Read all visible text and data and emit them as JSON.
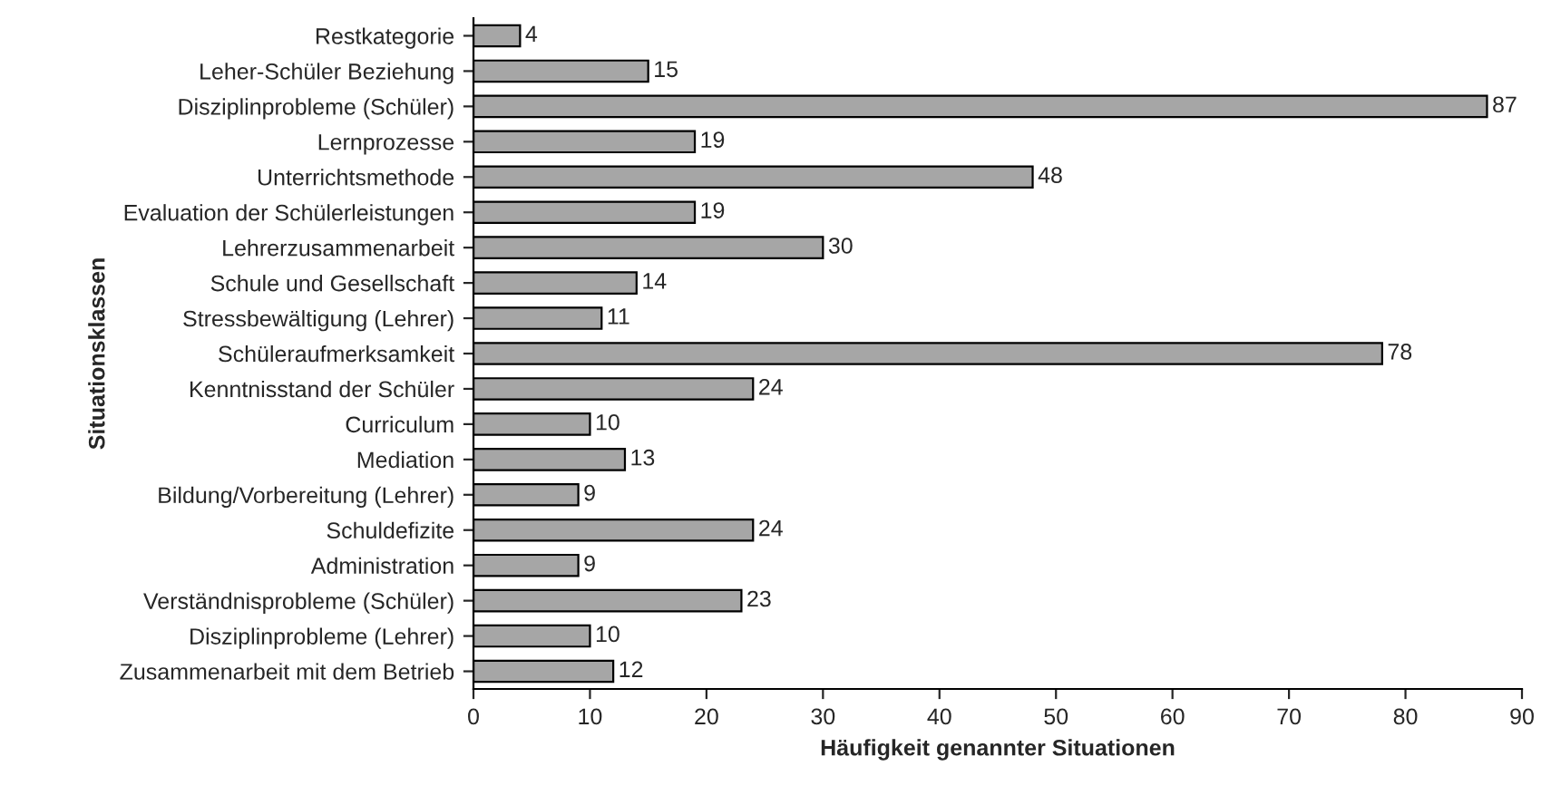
{
  "chart_data": {
    "type": "bar",
    "orientation": "horizontal",
    "ylabel": "Situationsklassen",
    "xlabel": "Häufigkeit genannter Situationen",
    "categories": [
      "Restkategorie",
      "Leher-Schüler Beziehung",
      "Disziplinprobleme (Schüler)",
      "Lernprozesse",
      "Unterrichtsmethode",
      "Evaluation der Schülerleistungen",
      "Lehrerzusammenarbeit",
      "Schule und Gesellschaft",
      "Stressbewältigung (Lehrer)",
      "Schüleraufmerksamkeit",
      "Kenntnisstand der Schüler",
      "Curriculum",
      "Mediation",
      "Bildung/Vorbereitung (Lehrer)",
      "Schuldefizite",
      "Administration",
      "Verständnisprobleme (Schüler)",
      "Disziplinprobleme (Lehrer)",
      "Zusammenarbeit mit dem Betrieb"
    ],
    "values": [
      4,
      15,
      87,
      19,
      48,
      19,
      30,
      14,
      11,
      78,
      24,
      10,
      13,
      9,
      24,
      9,
      23,
      10,
      12
    ],
    "color": "#a6a6a6",
    "xlim": [
      0,
      90
    ],
    "xticks": [
      0,
      10,
      20,
      30,
      40,
      50,
      60,
      70,
      80,
      90
    ],
    "data_labels": true,
    "grid": false
  }
}
